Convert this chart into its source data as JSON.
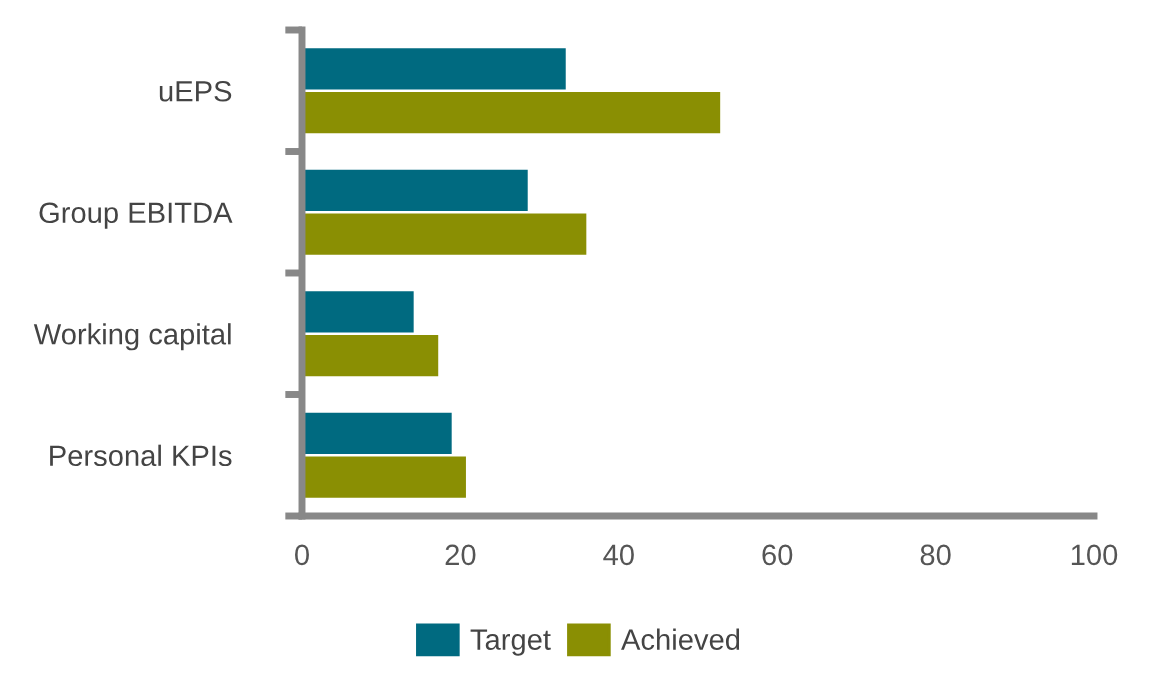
{
  "chart_data": {
    "type": "bar",
    "orientation": "horizontal",
    "categories": [
      "uEPS",
      "Group EBITDA",
      "Working capital",
      "Personal KPIs"
    ],
    "series": [
      {
        "name": "Target",
        "color": "#006a80",
        "values": [
          33.3,
          28.5,
          14.1,
          18.9
        ]
      },
      {
        "name": "Achieved",
        "color": "#8a8f03",
        "values": [
          52.8,
          35.9,
          17.2,
          20.7
        ]
      }
    ],
    "xlim": [
      0,
      100
    ],
    "xticks": [
      0,
      20,
      40,
      60,
      80,
      100
    ],
    "grid": false,
    "legend": "bottom"
  }
}
